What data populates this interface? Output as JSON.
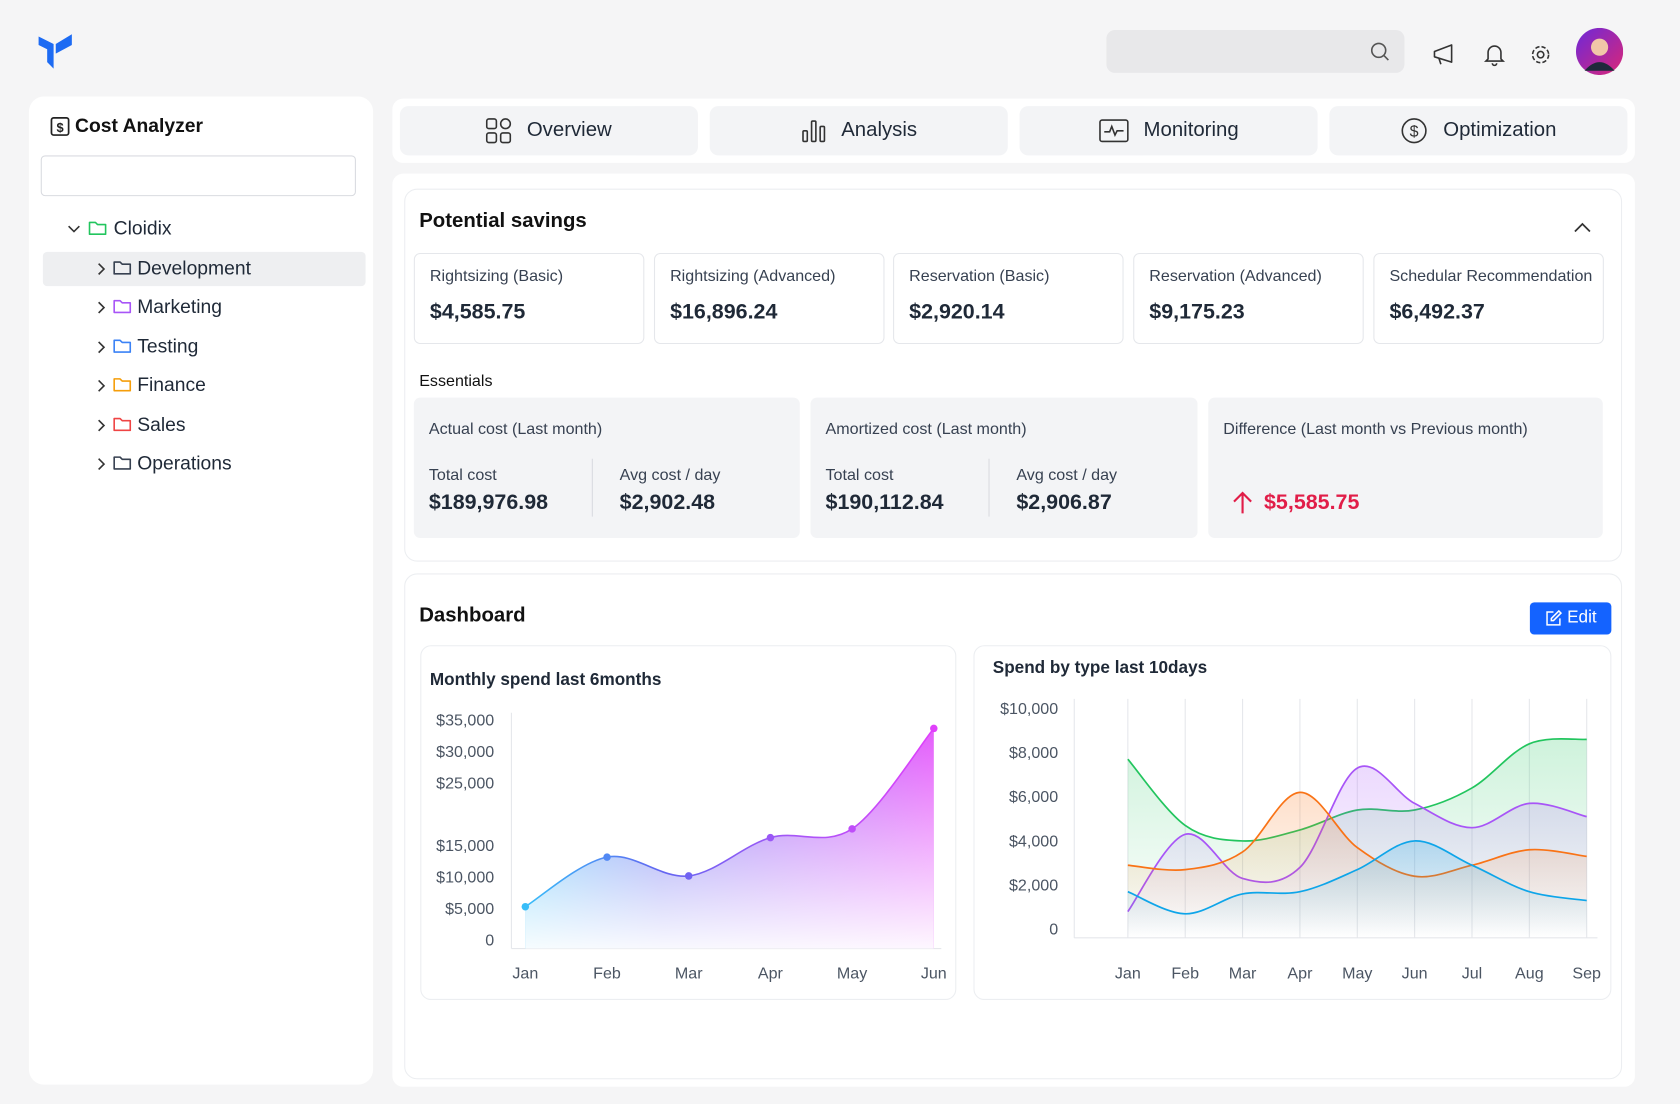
{
  "sidebar": {
    "title": "Cost Analyzer",
    "tree": {
      "label": "Cloidix",
      "color": "#22c55e",
      "children": [
        {
          "label": "Development",
          "color": "#374151"
        },
        {
          "label": "Marketing",
          "color": "#a855f7"
        },
        {
          "label": "Testing",
          "color": "#3b82f6"
        },
        {
          "label": "Finance",
          "color": "#f59e0b"
        },
        {
          "label": "Sales",
          "color": "#ef4444"
        },
        {
          "label": "Operations",
          "color": "#374151"
        }
      ]
    }
  },
  "tabs": [
    {
      "label": "Overview"
    },
    {
      "label": "Analysis"
    },
    {
      "label": "Monitoring"
    },
    {
      "label": "Optimization"
    }
  ],
  "savings": {
    "title": "Potential savings",
    "cards": [
      {
        "label": "Rightsizing (Basic)",
        "value": "$4,585.75"
      },
      {
        "label": "Rightsizing (Advanced)",
        "value": "$16,896.24"
      },
      {
        "label": "Reservation (Basic)",
        "value": "$2,920.14"
      },
      {
        "label": "Reservation (Advanced)",
        "value": "$9,175.23"
      },
      {
        "label": "Schedular Recommendation",
        "value": "$6,492.37"
      }
    ]
  },
  "essentials": {
    "title": "Essentials",
    "cards": [
      {
        "title": "Actual cost (Last month)",
        "metrics": [
          {
            "label": "Total cost",
            "value": "$189,976.98"
          },
          {
            "label": "Avg cost / day",
            "value": "$2,902.48"
          }
        ]
      },
      {
        "title": "Amortized cost (Last month)",
        "metrics": [
          {
            "label": "Total cost",
            "value": "$190,112.84"
          },
          {
            "label": "Avg cost / day",
            "value": "$2,906.87"
          }
        ]
      },
      {
        "title": "Difference (Last month vs Previous month)",
        "value": "$5,585.75"
      }
    ]
  },
  "dashboard": {
    "title": "Dashboard",
    "edit": "Edit",
    "charts": [
      {
        "type": "area",
        "title": "Monthly spend last 6months",
        "categories": [
          "Jan",
          "Feb",
          "Mar",
          "Apr",
          "May",
          "Jun"
        ],
        "values": [
          5300,
          13200,
          10200,
          16300,
          17700,
          33700
        ],
        "gradient": [
          "#38bdf8",
          "#6366f1",
          "#a855f7",
          "#e040fb"
        ],
        "ylim": [
          0,
          35000
        ],
        "yticks": [
          {
            "value": 35000,
            "label": "$35,000"
          },
          {
            "value": 30000,
            "label": "$30,000"
          },
          {
            "value": 25000,
            "label": "$25,000"
          },
          {
            "value": 15000,
            "label": "$15,000"
          },
          {
            "value": 10000,
            "label": "$10,000"
          },
          {
            "value": 5000,
            "label": "$5,000"
          },
          0
        ]
      },
      {
        "type": "line",
        "title": "Spend by type last 10days",
        "categories": [
          "Jan",
          "Feb",
          "Mar",
          "Apr",
          "May",
          "Jun",
          "Jul",
          "Aug",
          "Sep"
        ],
        "series": [
          {
            "color": "#22c55e",
            "values": [
              7700,
              4700,
              4000,
              4500,
              5400,
              5400,
              6400,
              8400,
              8600
            ]
          },
          {
            "color": "#a855f7",
            "values": [
              800,
              4300,
              2300,
              2800,
              7300,
              5700,
              4600,
              5700,
              5100
            ]
          },
          {
            "color": "#f97316",
            "values": [
              2900,
              2700,
              3500,
              6200,
              3700,
              2400,
              2900,
              3600,
              3300
            ]
          },
          {
            "color": "#0ea5e9",
            "values": [
              1700,
              700,
              1600,
              1700,
              2700,
              4000,
              2900,
              1700,
              1300
            ]
          }
        ],
        "ylim": [
          0,
          10000
        ],
        "yticks": [
          {
            "value": 10000,
            "label": "$10,000"
          },
          {
            "value": 8000,
            "label": "$8,000"
          },
          {
            "value": 6000,
            "label": "$6,000"
          },
          {
            "value": 4000,
            "label": "$4,000"
          },
          {
            "value": 2000,
            "label": "$2,000"
          },
          0
        ],
        "grid": true
      }
    ]
  }
}
